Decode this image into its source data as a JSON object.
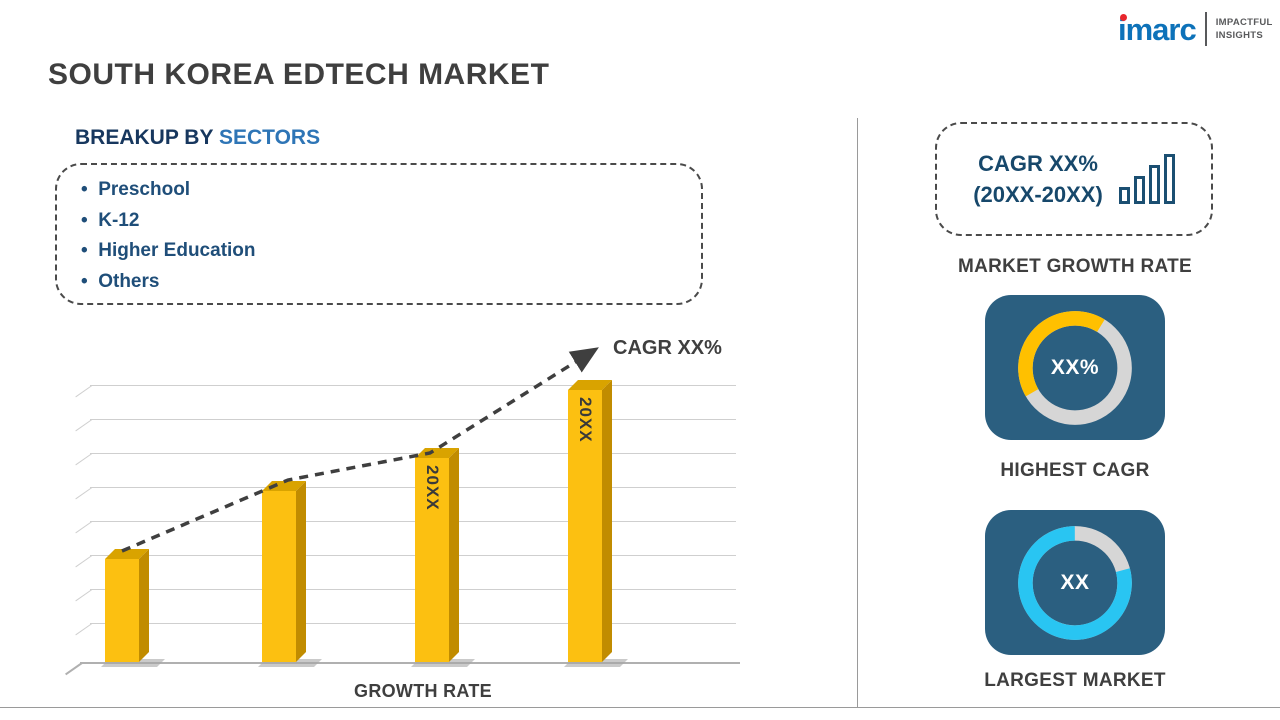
{
  "logo": {
    "brand": "imarc",
    "tagline1": "IMPACTFUL",
    "tagline2": "INSIGHTS"
  },
  "title": "SOUTH KOREA EDTECH MARKET",
  "breakup": {
    "prefix": "BREAKUP BY ",
    "highlight": "SECTORS",
    "items": [
      "Preschool",
      "K-12",
      "Higher Education",
      "Others"
    ]
  },
  "right_panel": {
    "growth_box": {
      "line1": "CAGR XX%",
      "line2": "(20XX-20XX)"
    },
    "growth_box_label": "MARKET GROWTH RATE"
  },
  "chart_data": [
    {
      "id": "growth_bar_chart",
      "type": "bar",
      "title": "GROWTH RATE",
      "categories": [
        "",
        "",
        "20XX",
        "20XX"
      ],
      "values": [
        38,
        63,
        75,
        100
      ],
      "ylim": [
        0,
        100
      ],
      "grid": true,
      "bar_color": "#FCC011",
      "annotation": "CAGR XX%",
      "trend": "dashed rising arrow over bars"
    },
    {
      "id": "highest_cagr_ring",
      "type": "pie",
      "label": "HIGHEST CAGR",
      "center_text": "XX%",
      "values": [
        42,
        58
      ],
      "colors": [
        "#FFC000",
        "#D6D6D6"
      ],
      "start_deg": 150
    },
    {
      "id": "largest_market_ring",
      "type": "pie",
      "label": "LARGEST MARKET",
      "center_text": "XX",
      "values": [
        79,
        21
      ],
      "colors": [
        "#29C5F2",
        "#D6D6D6"
      ],
      "start_deg": 345
    }
  ],
  "colors": {
    "accent_navy": "#1F4E79",
    "accent_blue": "#2E75B6",
    "panel_blue": "#2B5F80",
    "bar_gold": "#FCC011",
    "ring_gray": "#D6D6D6",
    "text_gray": "#3F3F3F"
  }
}
